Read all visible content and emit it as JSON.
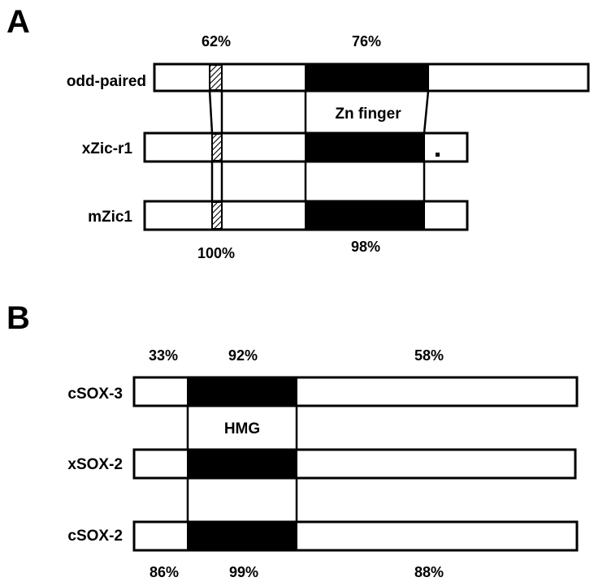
{
  "panel_a": {
    "letter": "A",
    "proteins": [
      "odd-paired",
      "xZic-r1",
      "mZic1"
    ],
    "domain_label": "Zn finger",
    "top_identity": [
      "62%",
      "76%"
    ],
    "bottom_identity": [
      "100%",
      "98%"
    ],
    "colors": {
      "domain": "#000000",
      "hatched_motif": "diagonal-hatch"
    }
  },
  "panel_b": {
    "letter": "B",
    "proteins": [
      "cSOX-3",
      "xSOX-2",
      "cSOX-2"
    ],
    "domain_label": "HMG",
    "top_identity": [
      "33%",
      "92%",
      "58%"
    ],
    "bottom_identity": [
      "86%",
      "99%",
      "88%"
    ],
    "colors": {
      "domain": "#000000"
    }
  }
}
